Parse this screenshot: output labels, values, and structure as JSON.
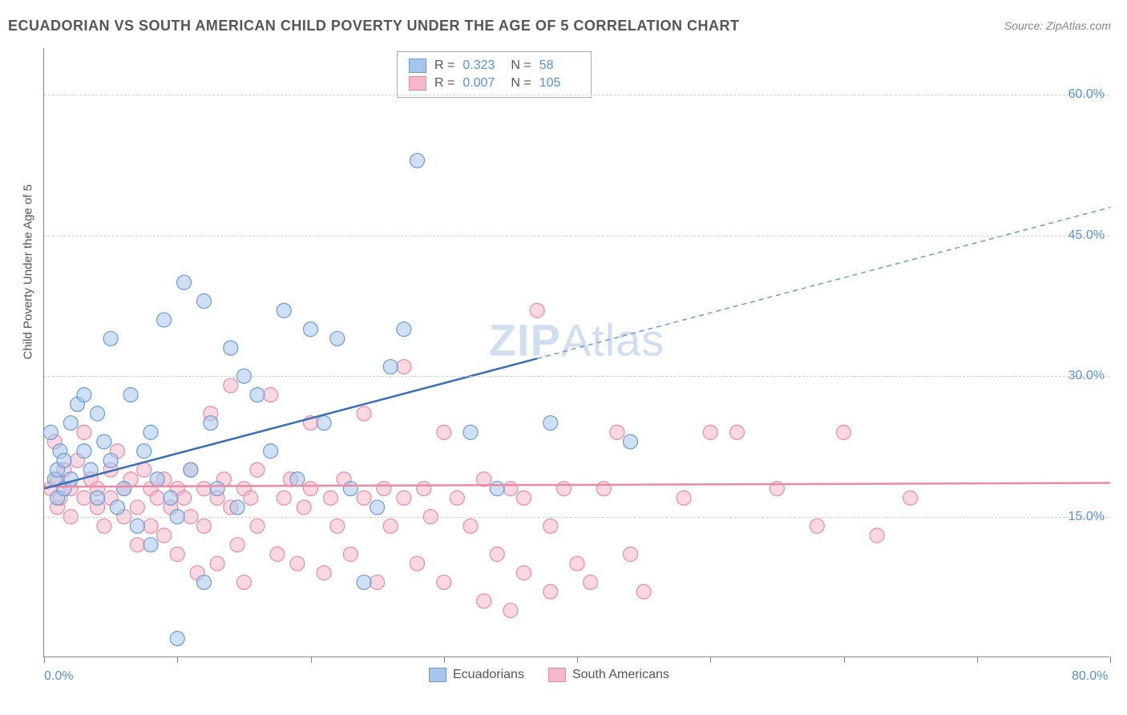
{
  "title": "ECUADORIAN VS SOUTH AMERICAN CHILD POVERTY UNDER THE AGE OF 5 CORRELATION CHART",
  "source": "Source: ZipAtlas.com",
  "y_axis_label": "Child Poverty Under the Age of 5",
  "watermark_zip": "ZIP",
  "watermark_atlas": "Atlas",
  "chart": {
    "type": "scatter",
    "background_color": "#ffffff",
    "grid_color": "#d0d0d0",
    "text_color": "#555555",
    "axis_color": "#888888",
    "accent_color": "#5b8fd6",
    "xlim": [
      0,
      80
    ],
    "ylim": [
      0,
      65
    ],
    "x_ticks": [
      0,
      10,
      20,
      30,
      40,
      50,
      60,
      70,
      80
    ],
    "x_tick_labels": {
      "0": "0.0%",
      "80": "80.0%"
    },
    "y_ticks": [
      15,
      30,
      45,
      60
    ],
    "y_tick_labels": {
      "15": "15.0%",
      "30": "30.0%",
      "45": "45.0%",
      "60": "60.0%"
    },
    "marker_radius": 9,
    "marker_opacity": 0.55,
    "line_width_solid": 2.5,
    "line_width_dashed": 1.5,
    "dash_pattern": "6,5"
  },
  "series": {
    "ecuadorians": {
      "label": "Ecuadorians",
      "color_fill": "#a7c6ed",
      "color_stroke": "#6b9bd1",
      "r_value": "0.323",
      "n_value": "58",
      "trend_line": {
        "x1": 0,
        "y1": 18,
        "x2": 80,
        "y2": 48,
        "split_x": 37
      },
      "points": [
        [
          0.5,
          24
        ],
        [
          0.8,
          19
        ],
        [
          1,
          17
        ],
        [
          1,
          20
        ],
        [
          1.2,
          22
        ],
        [
          1.5,
          18
        ],
        [
          1.5,
          21
        ],
        [
          2,
          19
        ],
        [
          2,
          25
        ],
        [
          2.5,
          27
        ],
        [
          3,
          28
        ],
        [
          3,
          22
        ],
        [
          3.5,
          20
        ],
        [
          4,
          17
        ],
        [
          4,
          26
        ],
        [
          4.5,
          23
        ],
        [
          5,
          21
        ],
        [
          5,
          34
        ],
        [
          5.5,
          16
        ],
        [
          6,
          18
        ],
        [
          6.5,
          28
        ],
        [
          7,
          14
        ],
        [
          7.5,
          22
        ],
        [
          8,
          12
        ],
        [
          8,
          24
        ],
        [
          8.5,
          19
        ],
        [
          9,
          36
        ],
        [
          9.5,
          17
        ],
        [
          10,
          2
        ],
        [
          10,
          15
        ],
        [
          10.5,
          40
        ],
        [
          11,
          20
        ],
        [
          12,
          38
        ],
        [
          12,
          8
        ],
        [
          12.5,
          25
        ],
        [
          13,
          18
        ],
        [
          14,
          33
        ],
        [
          14.5,
          16
        ],
        [
          15,
          30
        ],
        [
          16,
          28
        ],
        [
          17,
          22
        ],
        [
          18,
          37
        ],
        [
          19,
          19
        ],
        [
          20,
          35
        ],
        [
          21,
          25
        ],
        [
          22,
          34
        ],
        [
          23,
          18
        ],
        [
          24,
          8
        ],
        [
          25,
          16
        ],
        [
          26,
          31
        ],
        [
          27,
          35
        ],
        [
          28,
          53
        ],
        [
          32,
          24
        ],
        [
          34,
          18
        ],
        [
          38,
          25
        ],
        [
          44,
          23
        ]
      ]
    },
    "south_americans": {
      "label": "South Americans",
      "color_fill": "#f5b8c8",
      "color_stroke": "#e88ba5",
      "r_value": "0.007",
      "n_value": "105",
      "trend_line": {
        "x1": 0,
        "y1": 18.2,
        "x2": 80,
        "y2": 18.6
      },
      "points": [
        [
          0.5,
          18
        ],
        [
          0.8,
          23
        ],
        [
          1,
          16
        ],
        [
          1,
          19
        ],
        [
          1.2,
          17
        ],
        [
          1.5,
          20
        ],
        [
          2,
          18
        ],
        [
          2,
          15
        ],
        [
          2.5,
          21
        ],
        [
          3,
          17
        ],
        [
          3,
          24
        ],
        [
          3.5,
          19
        ],
        [
          4,
          16
        ],
        [
          4,
          18
        ],
        [
          4.5,
          14
        ],
        [
          5,
          20
        ],
        [
          5,
          17
        ],
        [
          5.5,
          22
        ],
        [
          6,
          15
        ],
        [
          6,
          18
        ],
        [
          6.5,
          19
        ],
        [
          7,
          16
        ],
        [
          7,
          12
        ],
        [
          7.5,
          20
        ],
        [
          8,
          18
        ],
        [
          8,
          14
        ],
        [
          8.5,
          17
        ],
        [
          9,
          19
        ],
        [
          9,
          13
        ],
        [
          9.5,
          16
        ],
        [
          10,
          18
        ],
        [
          10,
          11
        ],
        [
          10.5,
          17
        ],
        [
          11,
          20
        ],
        [
          11,
          15
        ],
        [
          11.5,
          9
        ],
        [
          12,
          18
        ],
        [
          12,
          14
        ],
        [
          12.5,
          26
        ],
        [
          13,
          17
        ],
        [
          13,
          10
        ],
        [
          13.5,
          19
        ],
        [
          14,
          16
        ],
        [
          14,
          29
        ],
        [
          14.5,
          12
        ],
        [
          15,
          18
        ],
        [
          15,
          8
        ],
        [
          15.5,
          17
        ],
        [
          16,
          20
        ],
        [
          16,
          14
        ],
        [
          17,
          28
        ],
        [
          17.5,
          11
        ],
        [
          18,
          17
        ],
        [
          18.5,
          19
        ],
        [
          19,
          10
        ],
        [
          19.5,
          16
        ],
        [
          20,
          18
        ],
        [
          20,
          25
        ],
        [
          21,
          9
        ],
        [
          21.5,
          17
        ],
        [
          22,
          14
        ],
        [
          22.5,
          19
        ],
        [
          23,
          11
        ],
        [
          24,
          17
        ],
        [
          24,
          26
        ],
        [
          25,
          8
        ],
        [
          25.5,
          18
        ],
        [
          26,
          14
        ],
        [
          27,
          17
        ],
        [
          27,
          31
        ],
        [
          28,
          10
        ],
        [
          28.5,
          18
        ],
        [
          29,
          15
        ],
        [
          30,
          24
        ],
        [
          30,
          8
        ],
        [
          31,
          17
        ],
        [
          32,
          14
        ],
        [
          33,
          6
        ],
        [
          33,
          19
        ],
        [
          34,
          11
        ],
        [
          35,
          18
        ],
        [
          35,
          5
        ],
        [
          36,
          9
        ],
        [
          36,
          17
        ],
        [
          37,
          37
        ],
        [
          38,
          14
        ],
        [
          38,
          7
        ],
        [
          39,
          18
        ],
        [
          40,
          10
        ],
        [
          41,
          8
        ],
        [
          42,
          18
        ],
        [
          43,
          24
        ],
        [
          44,
          11
        ],
        [
          45,
          7
        ],
        [
          48,
          17
        ],
        [
          50,
          24
        ],
        [
          52,
          24
        ],
        [
          55,
          18
        ],
        [
          58,
          14
        ],
        [
          60,
          24
        ],
        [
          62.5,
          13
        ],
        [
          65,
          17
        ]
      ]
    }
  },
  "legend_top": {
    "r_label": "R =",
    "n_label": "N ="
  },
  "legend_bottom": {
    "items": [
      "ecuadorians",
      "south_americans"
    ]
  }
}
